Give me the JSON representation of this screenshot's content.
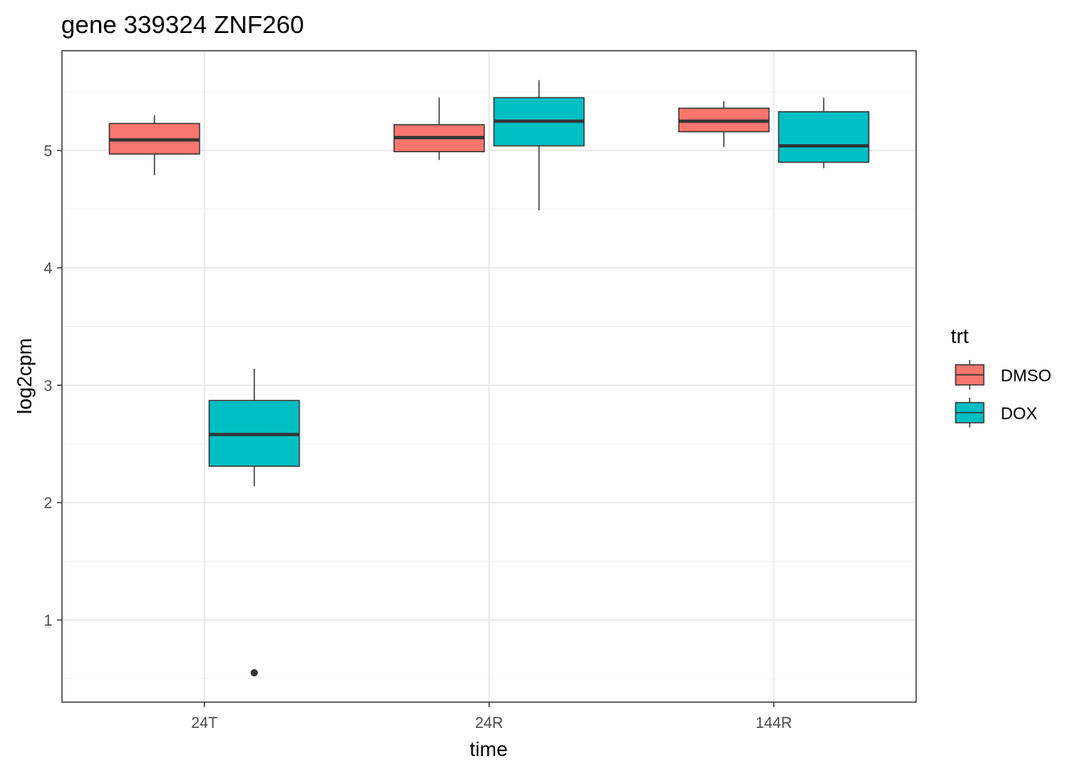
{
  "chart_data": {
    "type": "box",
    "title": "gene 339324 ZNF260",
    "xlabel": "time",
    "ylabel": "log2cpm",
    "categories": [
      "24T",
      "24R",
      "144R"
    ],
    "ylim": [
      0.3,
      5.85
    ],
    "yticks": [
      1,
      2,
      3,
      4,
      5
    ],
    "grid": true,
    "legend": {
      "title": "trt",
      "position": "right",
      "entries": [
        {
          "label": "DMSO",
          "color": "#F8766D"
        },
        {
          "label": "DOX",
          "color": "#00BFC4"
        }
      ]
    },
    "series": [
      {
        "name": "DMSO",
        "color": "#F8766D",
        "boxes": [
          {
            "category": "24T",
            "min": 4.79,
            "q1": 4.97,
            "median": 5.09,
            "q3": 5.23,
            "max": 5.3,
            "outliers": []
          },
          {
            "category": "24R",
            "min": 4.92,
            "q1": 4.99,
            "median": 5.11,
            "q3": 5.22,
            "max": 5.45,
            "outliers": []
          },
          {
            "category": "144R",
            "min": 5.03,
            "q1": 5.16,
            "median": 5.25,
            "q3": 5.36,
            "max": 5.42,
            "outliers": []
          }
        ]
      },
      {
        "name": "DOX",
        "color": "#00BFC4",
        "boxes": [
          {
            "category": "24T",
            "min": 2.14,
            "q1": 2.31,
            "median": 2.58,
            "q3": 2.87,
            "max": 3.14,
            "outliers": [
              0.55
            ]
          },
          {
            "category": "24R",
            "min": 4.49,
            "q1": 5.04,
            "median": 5.25,
            "q3": 5.45,
            "max": 5.6,
            "outliers": []
          },
          {
            "category": "144R",
            "min": 4.85,
            "q1": 4.9,
            "median": 5.04,
            "q3": 5.33,
            "max": 5.45,
            "outliers": []
          }
        ]
      }
    ]
  }
}
